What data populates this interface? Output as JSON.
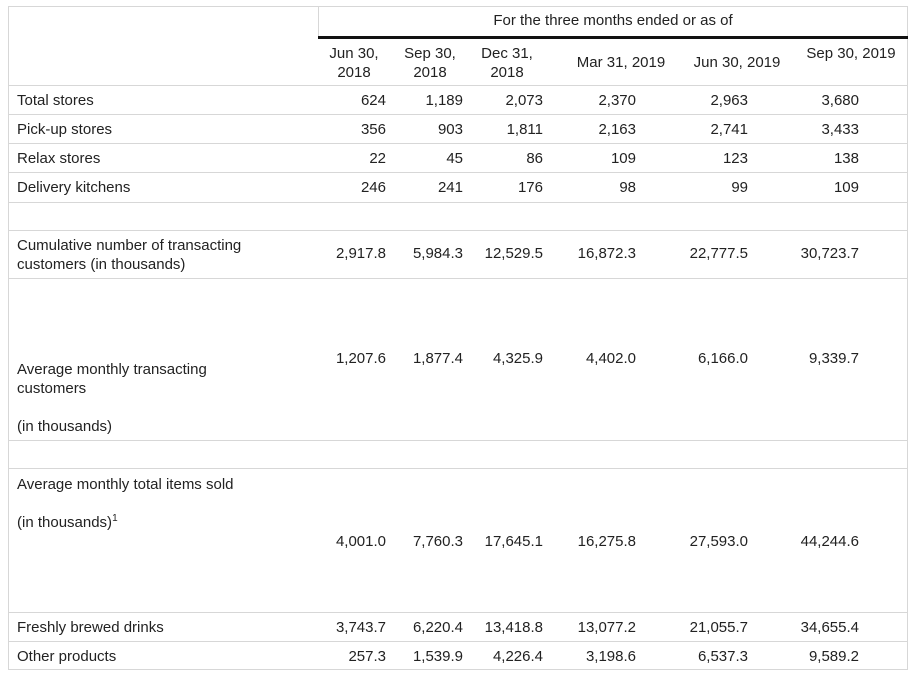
{
  "header": {
    "span_label": "For the three months ended or as of",
    "columns": [
      {
        "line1": "Jun 30,",
        "line2": "2018"
      },
      {
        "line1": "Sep 30,",
        "line2": "2018"
      },
      {
        "line1": "Dec 31,",
        "line2": "2018"
      },
      {
        "line1": "Mar 31, 2019",
        "line2": ""
      },
      {
        "line1": "Jun 30, 2019",
        "line2": ""
      },
      {
        "line1": "Sep 30, 2019",
        "line2": ""
      }
    ]
  },
  "rows": {
    "total_stores": {
      "label": "Total stores",
      "values": [
        "624",
        "1,189",
        "2,073",
        "2,370",
        "2,963",
        "3,680"
      ]
    },
    "pickup_stores": {
      "label": "Pick-up stores",
      "values": [
        "356",
        "903",
        "1,811",
        "2,163",
        "2,741",
        "3,433"
      ]
    },
    "relax_stores": {
      "label": "Relax stores",
      "values": [
        "22",
        "45",
        "86",
        "109",
        "123",
        "138"
      ]
    },
    "delivery_kitchens": {
      "label": "Delivery kitchens",
      "values": [
        "246",
        "241",
        "176",
        "98",
        "99",
        "109"
      ]
    },
    "cumulative_customers": {
      "label_line1": "Cumulative number of transacting",
      "label_line2": "customers (in thousands)",
      "values": [
        "2,917.8",
        "5,984.3",
        "12,529.5",
        "16,872.3",
        "22,777.5",
        "30,723.7"
      ]
    },
    "avg_monthly_customers": {
      "label_line1": "Average monthly transacting",
      "label_line2": "customers",
      "label_line3": "(in thousands)",
      "values": [
        "1,207.6",
        "1,877.4",
        "4,325.9",
        "4,402.0",
        "6,166.0",
        "9,339.7"
      ]
    },
    "avg_monthly_items": {
      "label_line1": "Average monthly total items sold",
      "label_line2": "(in thousands)",
      "footnote": "1",
      "values": [
        "4,001.0",
        "7,760.3",
        "17,645.1",
        "16,275.8",
        "27,593.0",
        "44,244.6"
      ]
    },
    "freshly_brewed": {
      "label": "Freshly brewed drinks",
      "values": [
        "3,743.7",
        "6,220.4",
        "13,418.8",
        "13,077.2",
        "21,055.7",
        "34,655.4"
      ]
    },
    "other_products": {
      "label": "Other products",
      "values": [
        "257.3",
        "1,539.9",
        "4,226.4",
        "3,198.6",
        "6,537.3",
        "9,589.2"
      ]
    }
  }
}
